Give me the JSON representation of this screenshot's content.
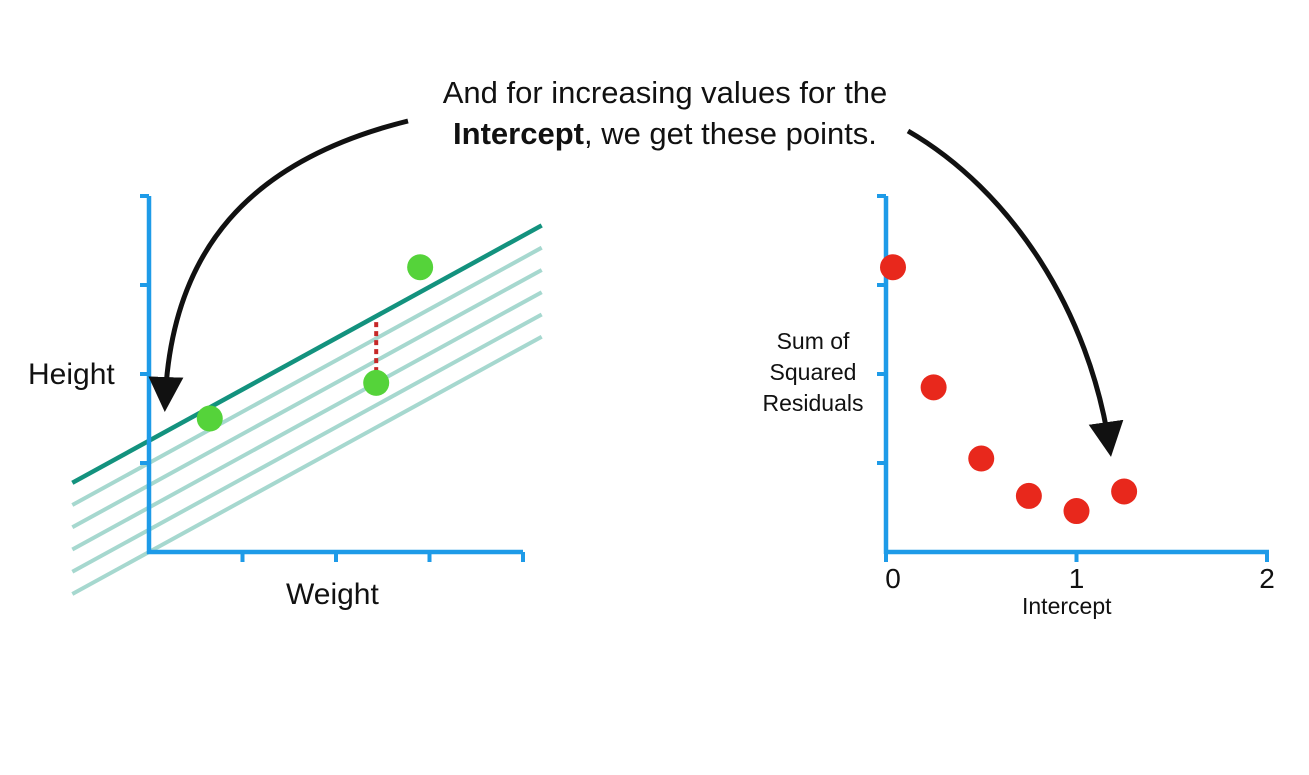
{
  "caption": {
    "line1": "And for increasing values for the",
    "bold": "Intercept",
    "rest": ", we get these points."
  },
  "colors": {
    "axis": "#1e9be8",
    "fit_line": "#13927e",
    "shifted_lines": "#a6d8cf",
    "points": "#55d33a",
    "residual": "#c62828",
    "ssr_points": "#e8281c",
    "arrow": "#111111"
  },
  "chart_data": [
    {
      "type": "scatter",
      "xlabel": "Weight",
      "ylabel": "Height",
      "xlim": [
        0,
        4
      ],
      "ylim": [
        0,
        4
      ],
      "xticks": [
        1,
        2,
        3,
        4
      ],
      "yticks": [
        1,
        2,
        3,
        4
      ],
      "points": [
        {
          "x": 0.65,
          "y": 1.5
        },
        {
          "x": 2.43,
          "y": 1.9
        },
        {
          "x": 2.9,
          "y": 3.2
        }
      ],
      "line_slope": 0.576,
      "intercepts": [
        1.25,
        1.0,
        0.75,
        0.5,
        0.25,
        0.0
      ],
      "highlighted_intercept": 1.25,
      "residual_x": 2.43
    },
    {
      "type": "scatter",
      "xlabel": "Intercept",
      "ylabel": "Sum of Squared Residuals",
      "xlim": [
        0,
        2
      ],
      "ylim": [
        0,
        4
      ],
      "xticks": [
        0,
        1,
        2
      ],
      "xtick_labels": [
        "0",
        "1",
        "2"
      ],
      "yticks": [
        1,
        2,
        3,
        4
      ],
      "points": [
        {
          "x": 0.0,
          "y": 3.2
        },
        {
          "x": 0.25,
          "y": 1.85
        },
        {
          "x": 0.5,
          "y": 1.05
        },
        {
          "x": 0.75,
          "y": 0.63
        },
        {
          "x": 1.0,
          "y": 0.46
        },
        {
          "x": 1.25,
          "y": 0.68
        }
      ]
    }
  ]
}
